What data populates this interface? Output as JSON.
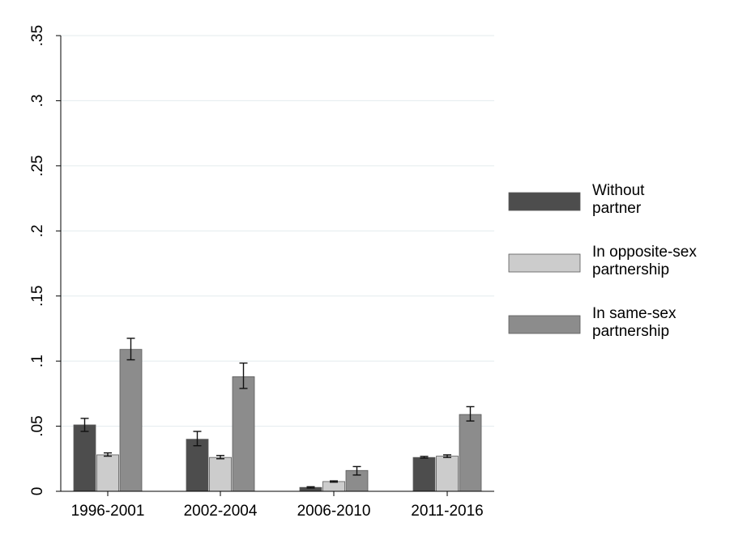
{
  "chart_data": {
    "type": "bar",
    "categories": [
      "1996-2001",
      "2002-2004",
      "2006-2010",
      "2011-2016"
    ],
    "ylim": [
      0,
      0.35
    ],
    "yticks": [
      {
        "value": 0,
        "label": "0"
      },
      {
        "value": 0.05,
        "label": ".05"
      },
      {
        "value": 0.1,
        "label": ".1"
      },
      {
        "value": 0.15,
        "label": ".15"
      },
      {
        "value": 0.2,
        "label": ".2"
      },
      {
        "value": 0.25,
        "label": ".25"
      },
      {
        "value": 0.3,
        "label": ".3"
      },
      {
        "value": 0.35,
        "label": ".35"
      }
    ],
    "grid": true,
    "legend_position": "right",
    "series": [
      {
        "name": "Without partner",
        "legend_lines": [
          "Without",
          "partner"
        ],
        "color": "#4d4d4d",
        "values": [
          0.051,
          0.04,
          0.003,
          0.026
        ],
        "ci_low": [
          0.046,
          0.035,
          0.0025,
          0.0255
        ],
        "ci_high": [
          0.056,
          0.046,
          0.0035,
          0.0268
        ]
      },
      {
        "name": "In opposite-sex partnership",
        "legend_lines": [
          "In opposite-sex",
          "partnership"
        ],
        "color": "#cccccc",
        "values": [
          0.028,
          0.026,
          0.0075,
          0.027
        ],
        "ci_low": [
          0.027,
          0.025,
          0.007,
          0.026
        ],
        "ci_high": [
          0.0295,
          0.0275,
          0.008,
          0.028
        ]
      },
      {
        "name": "In same-sex partnership",
        "legend_lines": [
          "In same-sex",
          "partnership"
        ],
        "color": "#8c8c8c",
        "values": [
          0.109,
          0.088,
          0.016,
          0.059
        ],
        "ci_low": [
          0.101,
          0.079,
          0.0125,
          0.054
        ],
        "ci_high": [
          0.1175,
          0.0985,
          0.019,
          0.065
        ]
      }
    ]
  }
}
